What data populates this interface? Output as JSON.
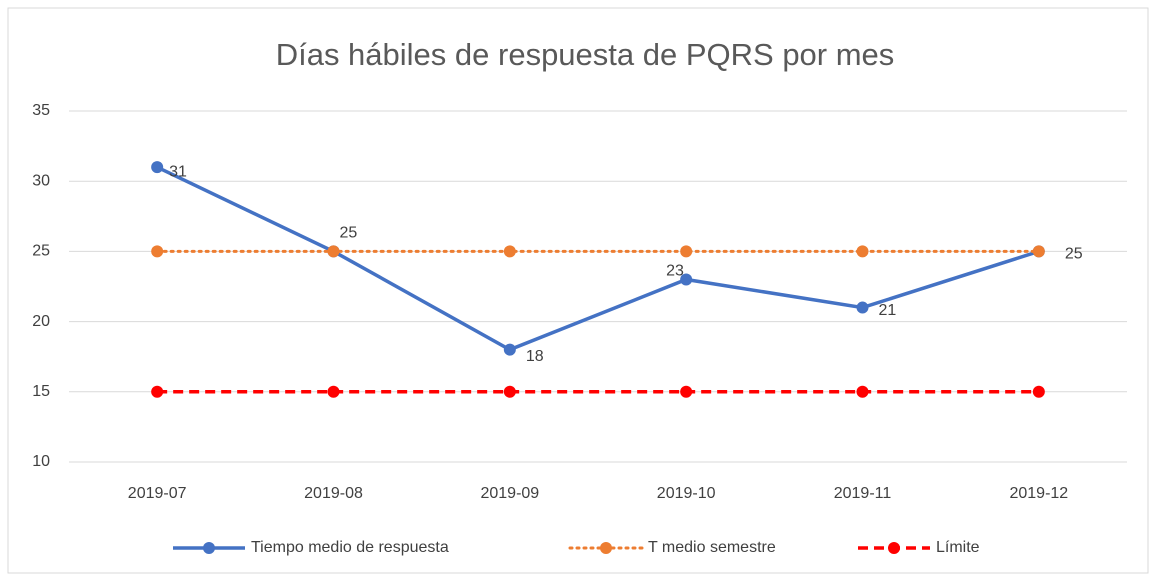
{
  "chart_data": {
    "type": "line",
    "title": "Días hábiles de respuesta de PQRS por mes",
    "categories": [
      "2019-07",
      "2019-08",
      "2019-09",
      "2019-10",
      "2019-11",
      "2019-12"
    ],
    "series": [
      {
        "name": "Tiempo medio de respuesta",
        "color": "#4472c4",
        "style": "solid",
        "values": [
          31,
          25,
          18,
          23,
          21,
          25
        ],
        "data_labels": true
      },
      {
        "name": "T medio semestre",
        "color": "#ed7d31",
        "style": "dotted",
        "values": [
          25,
          25,
          25,
          25,
          25,
          25
        ],
        "data_labels": false
      },
      {
        "name": "Límite",
        "color": "#ff0000",
        "style": "dashed",
        "values": [
          15,
          15,
          15,
          15,
          15,
          15
        ],
        "data_labels": false
      }
    ],
    "ylim": [
      10,
      35
    ],
    "yticks": [
      10,
      15,
      20,
      25,
      30,
      35
    ],
    "grid": true,
    "legend": "bottom"
  }
}
